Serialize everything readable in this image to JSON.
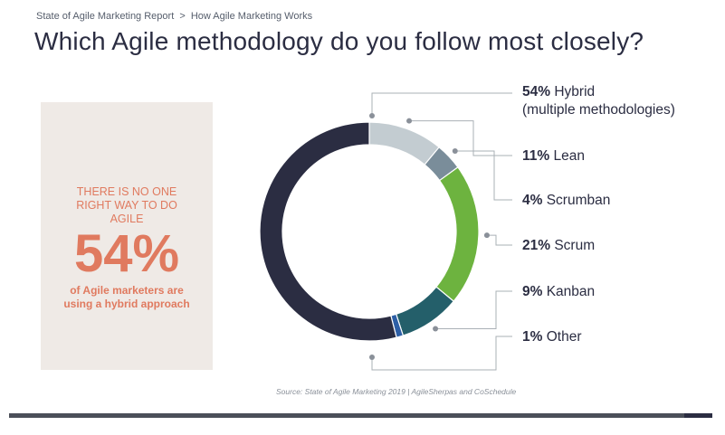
{
  "breadcrumb": {
    "report": "State of Agile Marketing Report",
    "separator": ">",
    "section": "How Agile Marketing Works"
  },
  "title": "Which Agile methodology do you follow most closely?",
  "callout": {
    "headline": "THERE IS NO ONE RIGHT WAY TO DO AGILE",
    "stat": "54%",
    "subtext": "of Agile marketers are using a hybrid approach"
  },
  "source": "Source: State of Agile Marketing 2019 | AgileSherpas and CoSchedule",
  "chart_data": {
    "type": "pie",
    "donut": true,
    "unit": "%",
    "slices": [
      {
        "pct": "54%",
        "label": "Hybrid",
        "label_line2": "(multiple methodologies)",
        "value": 54,
        "color": "#2b2d42"
      },
      {
        "pct": "11%",
        "label": "Lean",
        "value": 11,
        "color": "#c3ccd1"
      },
      {
        "pct": "4%",
        "label": "Scrumban",
        "value": 4,
        "color": "#7a8d9a"
      },
      {
        "pct": "21%",
        "label": "Scrum",
        "value": 21,
        "color": "#6db33f"
      },
      {
        "pct": "9%",
        "label": "Kanban",
        "value": 9,
        "color": "#245f6a"
      },
      {
        "pct": "1%",
        "label": "Other",
        "value": 1,
        "color": "#2d5fa6"
      }
    ],
    "legend_position": "right"
  }
}
